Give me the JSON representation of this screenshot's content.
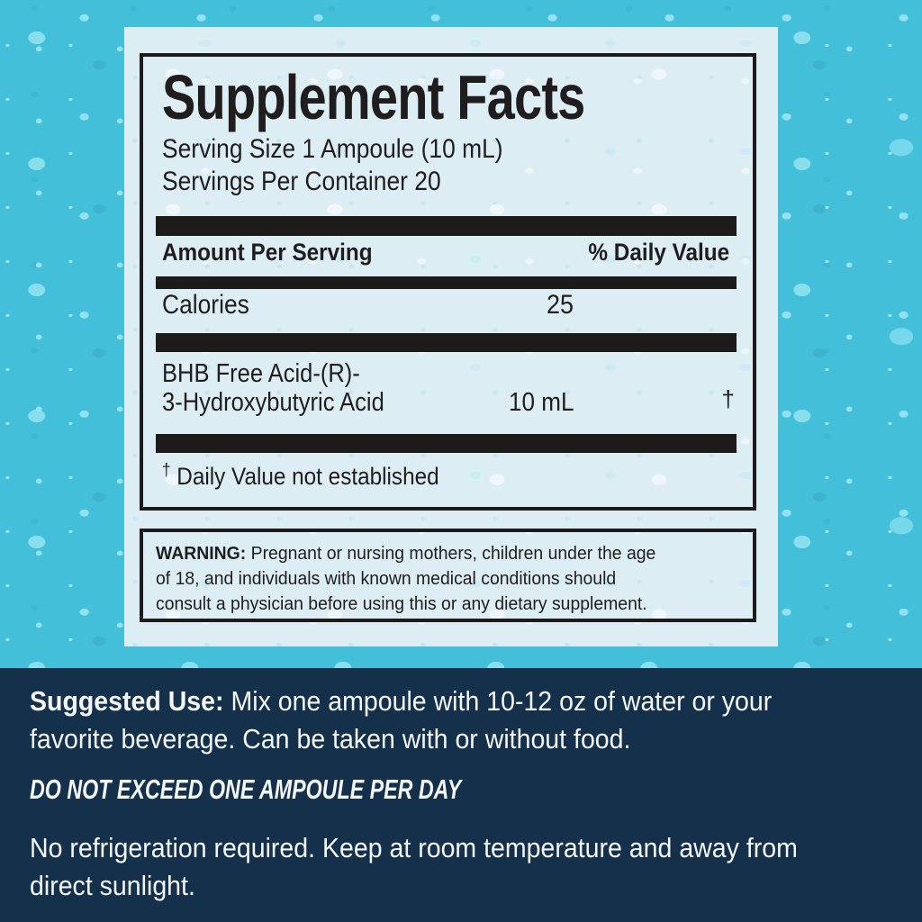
{
  "colors": {
    "background_cyan": "#44bfda",
    "droplet_highlight": "#94e4f1",
    "panel_blue": "#dcedf4",
    "ink_black": "#1c1b1a",
    "bottom_navy": "#14304a",
    "bottom_text_white": "#f4f7f9"
  },
  "label": {
    "title": "Supplement Facts",
    "serving_size": "Serving Size 1 Ampoule (10 mL)",
    "servings_per_container": "Servings Per Container 20",
    "header": {
      "amount_per_serving": "Amount Per Serving",
      "daily_value": "% Daily Value"
    },
    "rows": [
      {
        "name": "Calories",
        "amount": "25"
      },
      {
        "name_line1": "BHB Free Acid-(R)-",
        "name_line2": "3-Hydroxybutyric Acid",
        "amount": "10 mL",
        "daily_value": "†"
      }
    ],
    "footnote": {
      "symbol": "†",
      "text": "Daily Value not established"
    },
    "warning": {
      "label": "WARNING:",
      "lines": [
        "Pregnant or nursing mothers, children under the age",
        "of 18, and individuals with known medical conditions should",
        "consult a physician before using this or any dietary supplement."
      ]
    }
  },
  "usage": {
    "suggested": {
      "label": "Suggested Use:",
      "lines": [
        "Mix one ampoule with 10-12 oz of water or your",
        "favorite beverage. Can be taken with or without food."
      ]
    },
    "do_not_exceed": "DO NOT EXCEED ONE AMPOULE PER DAY",
    "storage_lines": [
      "No refrigeration required. Keep at room temperature and away from",
      "direct sunlight."
    ]
  }
}
